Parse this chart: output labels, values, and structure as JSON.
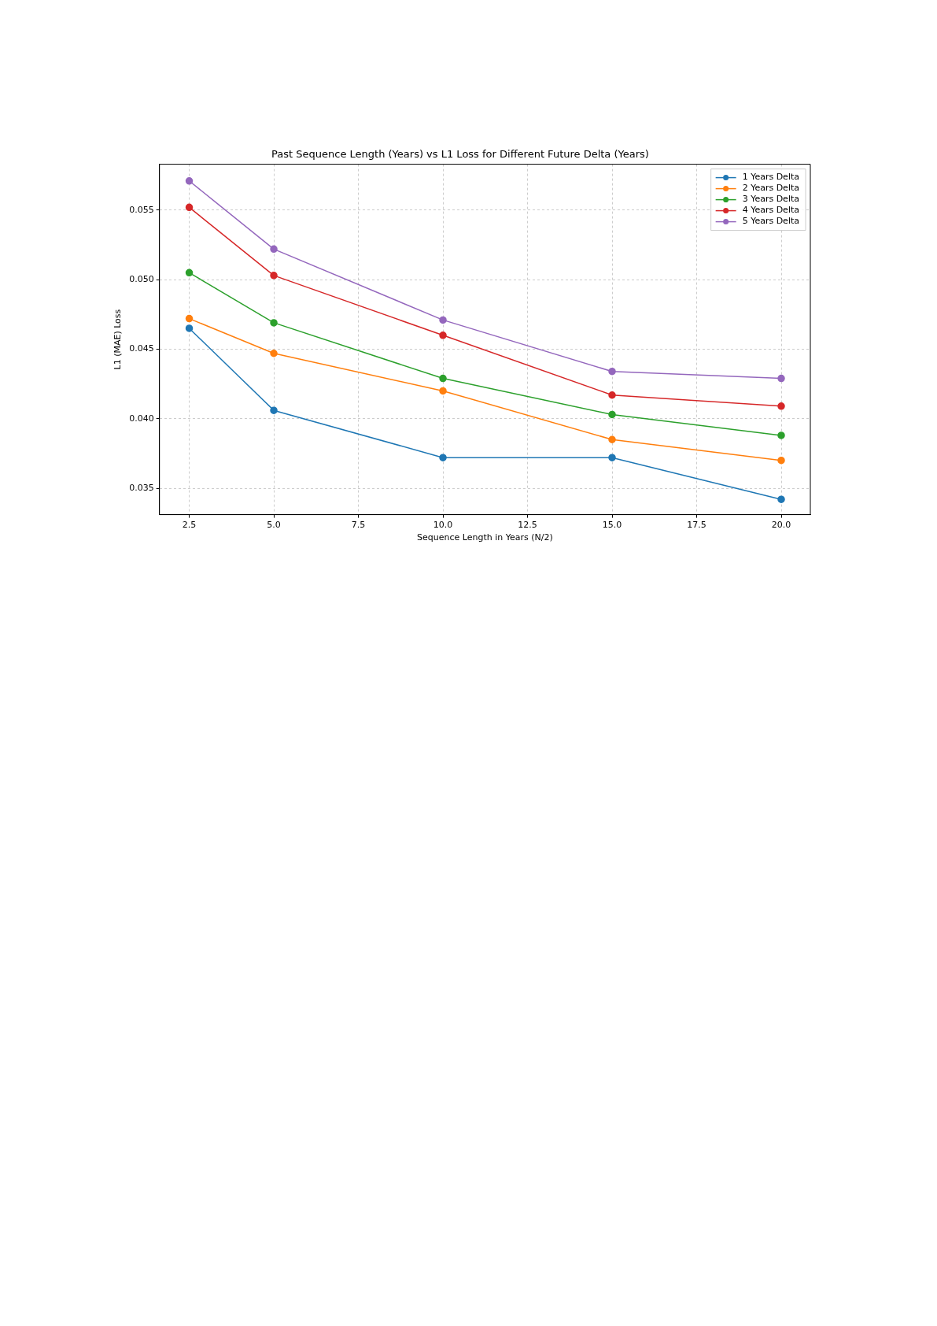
{
  "chart_data": {
    "type": "line",
    "title": "Past Sequence Length (Years) vs L1 Loss for Different Future Delta (Years)",
    "xlabel": "Sequence Length in Years (N/2)",
    "ylabel": "L1 (MAE) Loss",
    "x": [
      2.5,
      5,
      10,
      15,
      20
    ],
    "series": [
      {
        "name": "1 Years Delta",
        "color": "#1f77b4",
        "values": [
          0.0465,
          0.0406,
          0.0372,
          0.0372,
          0.0342
        ]
      },
      {
        "name": "2 Years Delta",
        "color": "#ff7f0e",
        "values": [
          0.0472,
          0.0447,
          0.042,
          0.0385,
          0.037
        ]
      },
      {
        "name": "3 Years Delta",
        "color": "#2ca02c",
        "values": [
          0.0505,
          0.0469,
          0.0429,
          0.0403,
          0.0388
        ]
      },
      {
        "name": "4 Years Delta",
        "color": "#d62728",
        "values": [
          0.0552,
          0.0503,
          0.046,
          0.0417,
          0.0409
        ]
      },
      {
        "name": "5 Years Delta",
        "color": "#9467bd",
        "values": [
          0.0571,
          0.0522,
          0.0471,
          0.0434,
          0.0429
        ]
      }
    ],
    "xlim": [
      1.62,
      20.86
    ],
    "ylim": [
      0.0331,
      0.0583
    ],
    "xticks": [
      {
        "value": 2.5,
        "label": "2.5"
      },
      {
        "value": 5,
        "label": "5.0"
      },
      {
        "value": 7.5,
        "label": "7.5"
      },
      {
        "value": 10,
        "label": "10.0"
      },
      {
        "value": 12.5,
        "label": "12.5"
      },
      {
        "value": 15,
        "label": "15.0"
      },
      {
        "value": 17.5,
        "label": "17.5"
      },
      {
        "value": 20,
        "label": "20.0"
      }
    ],
    "yticks": [
      0.035,
      {
        "value": 0.04,
        "label": "0.040"
      },
      0.045,
      {
        "value": 0.05,
        "label": "0.050"
      },
      0.055
    ],
    "grid": true,
    "legend": "top right",
    "marker": "circle",
    "line_style": "solid"
  }
}
